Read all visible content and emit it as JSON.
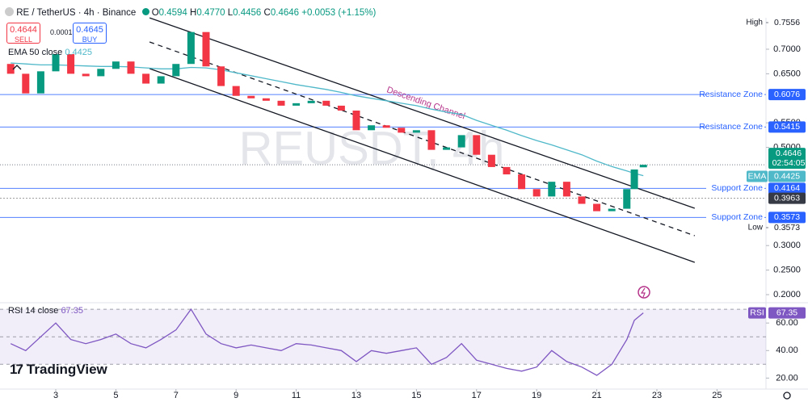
{
  "header": {
    "symbol": "RE / TetherUS · 4h · Binance",
    "ohlc": [
      {
        "label": "O",
        "value": "0.4594"
      },
      {
        "label": "H",
        "value": "0.4770"
      },
      {
        "label": "L",
        "value": "0.4456"
      },
      {
        "label": "C",
        "value": "0.4646"
      }
    ],
    "change": "+0.0053 (+1.15%)"
  },
  "trade": {
    "sell_price": "0.4644",
    "sell": "SELL",
    "buy_price": "0.4645",
    "buy": "BUY",
    "spread": "0.0001"
  },
  "logo": "TradingView",
  "chart_data": [
    {
      "type": "candlestick",
      "watermark": "REUSDT, 4h",
      "x": [
        1.5,
        2,
        2.5,
        3,
        3.5,
        4,
        4.5,
        5,
        5.5,
        6,
        6.5,
        7,
        7.5,
        8,
        8.5,
        9,
        9.5,
        10,
        10.5,
        11,
        11.5,
        12,
        12.5,
        13,
        13.5,
        14,
        14.5,
        15,
        15.5,
        16,
        16.5,
        17,
        17.5,
        18,
        18.5,
        19,
        19.5,
        20,
        20.5,
        21,
        21.5,
        22,
        22.25,
        22.55
      ],
      "open": [
        0.67,
        0.65,
        0.61,
        0.655,
        0.69,
        0.65,
        0.645,
        0.66,
        0.675,
        0.65,
        0.63,
        0.645,
        0.67,
        0.735,
        0.665,
        0.625,
        0.605,
        0.6,
        0.595,
        0.585,
        0.59,
        0.595,
        0.585,
        0.575,
        0.535,
        0.545,
        0.54,
        0.53,
        0.535,
        0.495,
        0.5,
        0.525,
        0.485,
        0.46,
        0.445,
        0.415,
        0.4,
        0.43,
        0.4,
        0.385,
        0.37,
        0.375,
        0.415,
        0.4594
      ],
      "high": {
        "label": "High",
        "value": 0.7556
      },
      "low": {
        "label": "Low",
        "value": 0.3573
      },
      "close": [
        0.65,
        0.61,
        0.655,
        0.69,
        0.65,
        0.645,
        0.66,
        0.675,
        0.65,
        0.63,
        0.645,
        0.67,
        0.735,
        0.665,
        0.625,
        0.605,
        0.6,
        0.595,
        0.585,
        0.59,
        0.595,
        0.585,
        0.575,
        0.535,
        0.545,
        0.54,
        0.53,
        0.535,
        0.495,
        0.5,
        0.525,
        0.485,
        0.46,
        0.445,
        0.415,
        0.4,
        0.43,
        0.4,
        0.385,
        0.37,
        0.375,
        0.415,
        0.455,
        0.4646
      ],
      "up_color": "#089981",
      "down_color": "#f23645",
      "series": [
        {
          "name": "EMA 50 close",
          "tag": "EMA",
          "color": "#4fb8c9",
          "values": [
            0.672,
            0.67,
            0.668,
            0.668,
            0.667,
            0.666,
            0.665,
            0.665,
            0.664,
            0.662,
            0.66,
            0.66,
            0.663,
            0.662,
            0.658,
            0.652,
            0.646,
            0.64,
            0.634,
            0.628,
            0.623,
            0.618,
            0.612,
            0.605,
            0.6,
            0.595,
            0.59,
            0.585,
            0.578,
            0.572,
            0.567,
            0.555,
            0.545,
            0.535,
            0.524,
            0.514,
            0.505,
            0.495,
            0.485,
            0.472,
            0.461,
            0.452,
            0.447,
            0.4425
          ]
        }
      ],
      "countdown": "02:54:05",
      "levels": [
        {
          "name": "Resistance Zone",
          "value": 0.6076,
          "color": "#2962ff"
        },
        {
          "name": "Resistance Zone",
          "value": 0.5415,
          "color": "#2962ff"
        },
        {
          "name": "Support Zone",
          "value": 0.4164,
          "color": "#2962ff"
        },
        {
          "value": 0.3963,
          "color": "#555555"
        },
        {
          "name": "Support Zone",
          "value": 0.3573,
          "color": "#2962ff"
        }
      ],
      "channel": {
        "label": "Descending Channel",
        "color": "#b5338a",
        "lines": [
          {
            "x": [
              6.12,
              24.26
            ],
            "y": [
              0.764,
              0.376
            ],
            "style": "solid"
          },
          {
            "x": [
              6.12,
              24.26
            ],
            "y": [
              0.7148,
              0.32
            ],
            "style": "dashed"
          },
          {
            "x": [
              6.12,
              24.26
            ],
            "y": [
              0.6605,
              0.2658
            ],
            "style": "solid"
          }
        ]
      },
      "xlim": [
        1.145,
        26.63
      ],
      "xticks": [
        3,
        5,
        7,
        9,
        11,
        13,
        15,
        17,
        19,
        21,
        23,
        25
      ],
      "ylim": [
        0.1885,
        0.7641
      ],
      "yticks": [
        {
          "value": 0.7,
          "label": "0.7000"
        },
        {
          "value": 0.65,
          "label": "0.6500"
        },
        {
          "value": 0.55,
          "label": "0.5500"
        },
        {
          "value": 0.5,
          "label": "0.5000"
        },
        {
          "value": 0.3,
          "label": "0.3000"
        },
        {
          "value": 0.25,
          "label": "0.2500"
        },
        {
          "value": 0.2,
          "label": "0.2000"
        }
      ],
      "grid": false
    },
    {
      "type": "line",
      "title": "RSI 14 close",
      "x": [
        1.5,
        2,
        2.5,
        3,
        3.5,
        4,
        4.5,
        5,
        5.5,
        6,
        6.5,
        7,
        7.5,
        8,
        8.5,
        9,
        9.5,
        10,
        10.5,
        11,
        11.5,
        12,
        12.5,
        13,
        13.5,
        14,
        14.5,
        15,
        15.5,
        16,
        16.5,
        17,
        17.5,
        18,
        18.5,
        19,
        19.5,
        20,
        20.5,
        21,
        21.5,
        22,
        22.25,
        22.55
      ],
      "series": [
        {
          "name": "RSI",
          "color": "#7e57c2",
          "values": [
            45,
            40,
            50,
            60,
            48,
            45,
            48,
            52,
            45,
            42,
            48,
            55,
            70,
            52,
            45,
            42,
            44,
            42,
            40,
            45,
            44,
            42,
            40,
            32,
            40,
            38,
            40,
            42,
            30,
            35,
            45,
            33,
            30,
            27,
            25,
            28,
            40,
            32,
            28,
            22,
            30,
            48,
            62,
            67.35
          ]
        }
      ],
      "levels": [
        70,
        50,
        30
      ],
      "xlim": [
        1.145,
        26.63
      ],
      "ylim": [
        12,
        73
      ],
      "yticks": [
        {
          "value": 60,
          "label": "60.00"
        },
        {
          "value": 40,
          "label": "40.00"
        },
        {
          "value": 20,
          "label": "20.00"
        }
      ],
      "grid": false
    }
  ]
}
